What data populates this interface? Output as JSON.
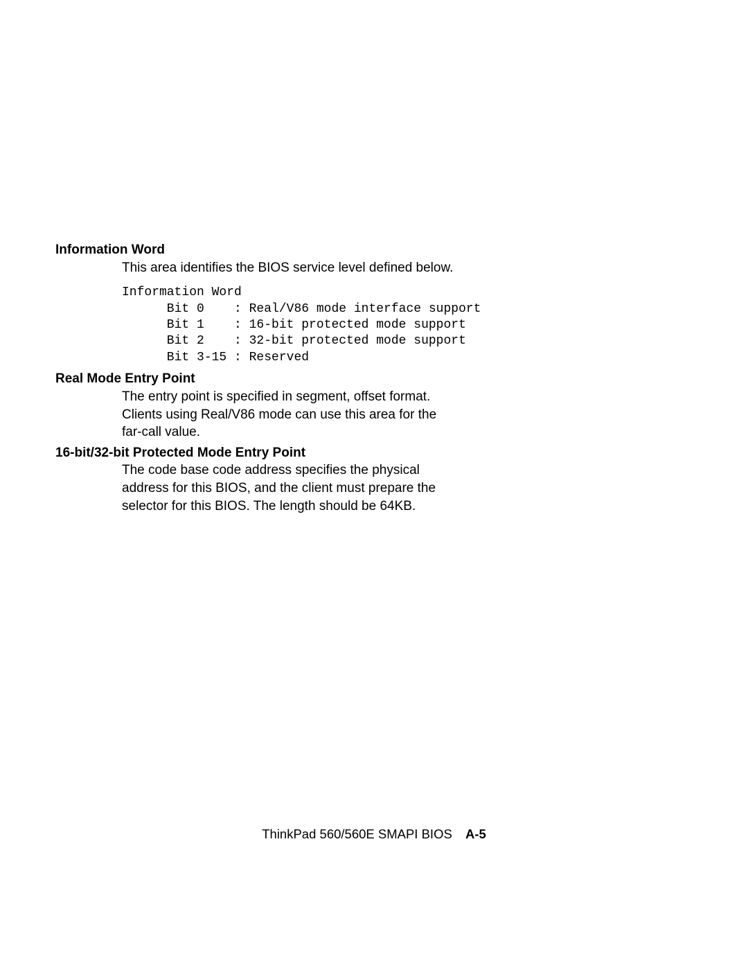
{
  "typography": {
    "body_font": "Arial, Helvetica, sans-serif",
    "mono_font": "Courier New, Courier, monospace",
    "body_size_pt": 14,
    "mono_size_pt": 13,
    "text_color": "#000000",
    "background_color": "#ffffff"
  },
  "sections": {
    "info_word": {
      "term": "Information Word",
      "desc": "This area identifies the BIOS service level defined below.",
      "code": "Information Word\n      Bit 0    : Real/V86 mode interface support\n      Bit 1    : 16-bit protected mode support\n      Bit 2    : 32-bit protected mode support\n      Bit 3-15 : Reserved"
    },
    "real_mode": {
      "term": "Real Mode Entry Point",
      "desc": "The entry point is specified in segment, offset format. Clients using Real/V86 mode can use this area for the far-call value."
    },
    "protected_mode": {
      "term": "16-bit/32-bit Protected Mode Entry Point",
      "desc": "The code base code address specifies the physical address for this BIOS, and the client must prepare the selector for this BIOS.  The length should be 64KB."
    }
  },
  "footer": {
    "title": "ThinkPad 560/560E SMAPI BIOS",
    "page": "A-5"
  }
}
